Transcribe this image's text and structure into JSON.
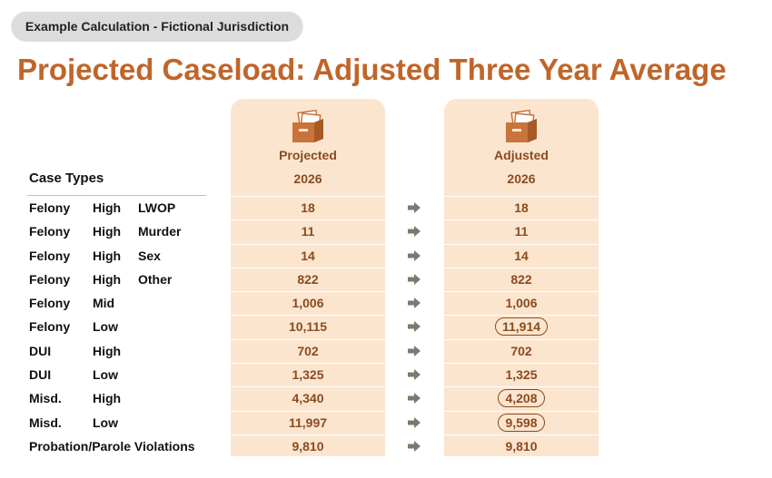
{
  "badge": "Example Calculation - Fictional Jurisdiction",
  "title": "Projected Caseload: Adjusted Three Year Average",
  "table": {
    "case_types_header": "Case Types",
    "columns": [
      {
        "label": "Projected",
        "year": "2026",
        "icon": "file-box-icon"
      },
      {
        "label": "Adjusted",
        "year": "2026",
        "icon": "file-box-icon"
      }
    ],
    "rows": [
      {
        "c1": "Felony",
        "c2": "High",
        "c3": "LWOP",
        "projected": "18",
        "adjusted": "18",
        "highlighted": false
      },
      {
        "c1": "Felony",
        "c2": "High",
        "c3": "Murder",
        "projected": "11",
        "adjusted": "11",
        "highlighted": false
      },
      {
        "c1": "Felony",
        "c2": "High",
        "c3": "Sex",
        "projected": "14",
        "adjusted": "14",
        "highlighted": false
      },
      {
        "c1": "Felony",
        "c2": "High",
        "c3": "Other",
        "projected": "822",
        "adjusted": "822",
        "highlighted": false
      },
      {
        "c1": "Felony",
        "c2": "Mid",
        "c3": "",
        "projected": "1,006",
        "adjusted": "1,006",
        "highlighted": false
      },
      {
        "c1": "Felony",
        "c2": "Low",
        "c3": "",
        "projected": "10,115",
        "adjusted": "11,914",
        "highlighted": true
      },
      {
        "c1": "DUI",
        "c2": "High",
        "c3": "",
        "projected": "702",
        "adjusted": "702",
        "highlighted": false
      },
      {
        "c1": "DUI",
        "c2": "Low",
        "c3": "",
        "projected": "1,325",
        "adjusted": "1,325",
        "highlighted": false
      },
      {
        "c1": "Misd.",
        "c2": "High",
        "c3": "",
        "projected": "4,340",
        "adjusted": "4,208",
        "highlighted": true
      },
      {
        "c1": "Misd.",
        "c2": "Low",
        "c3": "",
        "projected": "11,997",
        "adjusted": "9,598",
        "highlighted": true
      },
      {
        "c1": "Probation/Parole Violations",
        "c2": "",
        "c3": "",
        "projected": "9,810",
        "adjusted": "9,810",
        "highlighted": false
      }
    ]
  },
  "colors": {
    "title": "#c0652a",
    "column_fill": "#fbe5cf",
    "value_text": "#8a4b1f",
    "icon_fill": "#c8743a",
    "arrow": "#7a7a6e"
  }
}
